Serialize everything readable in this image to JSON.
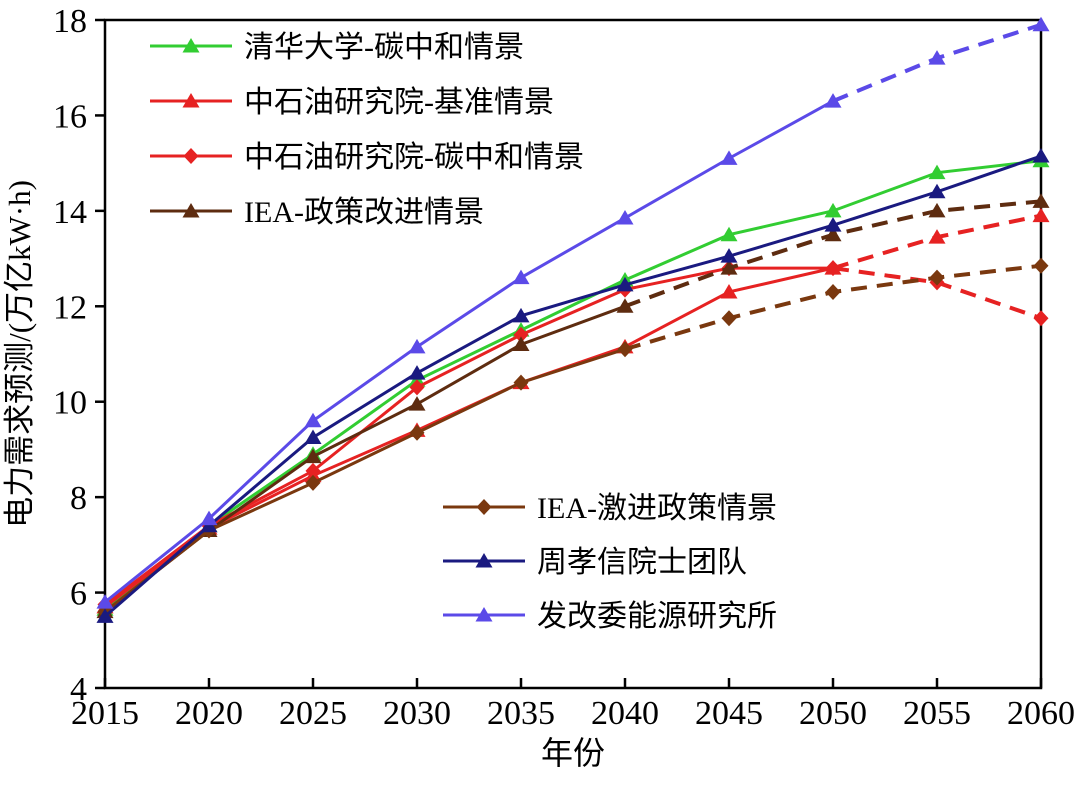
{
  "chart_data": {
    "type": "line",
    "title": "",
    "xlabel": "年份",
    "ylabel": "电力需求预测/(万亿kW·h)",
    "x": [
      2015,
      2020,
      2025,
      2030,
      2035,
      2040,
      2045,
      2050,
      2055,
      2060
    ],
    "xlim": [
      2015,
      2060
    ],
    "ylim": [
      4,
      18
    ],
    "ytick_step": 2,
    "yticks": [
      4,
      6,
      8,
      10,
      12,
      14,
      16,
      18
    ],
    "grid": false,
    "axis_color": "#000000",
    "series": [
      {
        "name": "清华大学-碳中和情景",
        "color": "#32cd32",
        "marker": "triangle",
        "dash_from": null,
        "values": [
          5.65,
          7.4,
          8.9,
          10.45,
          11.5,
          12.55,
          13.5,
          14.0,
          14.8,
          15.05
        ]
      },
      {
        "name": "中石油研究院-基准情景",
        "color": "#e62222",
        "marker": "triangle",
        "dash_from": 2050,
        "values": [
          5.7,
          7.35,
          8.45,
          9.4,
          10.4,
          11.15,
          12.3,
          12.8,
          13.45,
          13.9
        ]
      },
      {
        "name": "中石油研究院-碳中和情景",
        "color": "#e62222",
        "marker": "diamond",
        "dash_from": 2050,
        "values": [
          5.75,
          7.4,
          8.55,
          10.3,
          11.4,
          12.35,
          12.8,
          12.8,
          12.5,
          11.75
        ]
      },
      {
        "name": "IEA-政策改进情景",
        "color": "#5e2c10",
        "marker": "triangle",
        "dash_from": 2040,
        "values": [
          5.6,
          7.3,
          8.85,
          9.95,
          11.2,
          12.0,
          12.8,
          13.5,
          14.0,
          14.2
        ]
      },
      {
        "name": "IEA-激进政策情景",
        "color": "#7a380f",
        "marker": "diamond",
        "dash_from": 2040,
        "values": [
          5.6,
          7.3,
          8.3,
          9.35,
          10.4,
          11.1,
          11.75,
          12.3,
          12.6,
          12.85
        ]
      },
      {
        "name": "周孝信院士团队",
        "color": "#1a1a80",
        "marker": "triangle",
        "dash_from": null,
        "values": [
          5.5,
          7.4,
          9.25,
          10.6,
          11.8,
          12.45,
          13.05,
          13.7,
          14.4,
          15.15
        ]
      },
      {
        "name": "发改委能源研究所",
        "color": "#5b4ae8",
        "marker": "triangle",
        "dash_from": 2050,
        "values": [
          5.8,
          7.55,
          9.6,
          11.15,
          12.6,
          13.85,
          15.1,
          16.3,
          17.2,
          17.9
        ]
      }
    ],
    "legend_top_left": {
      "series_indexes": [
        0,
        1,
        2,
        3
      ]
    },
    "legend_bottom_center": {
      "series_indexes": [
        4,
        5,
        6
      ]
    },
    "legend_position_top": "top-left inside plot",
    "legend_position_bottom": "lower-center inside plot"
  }
}
